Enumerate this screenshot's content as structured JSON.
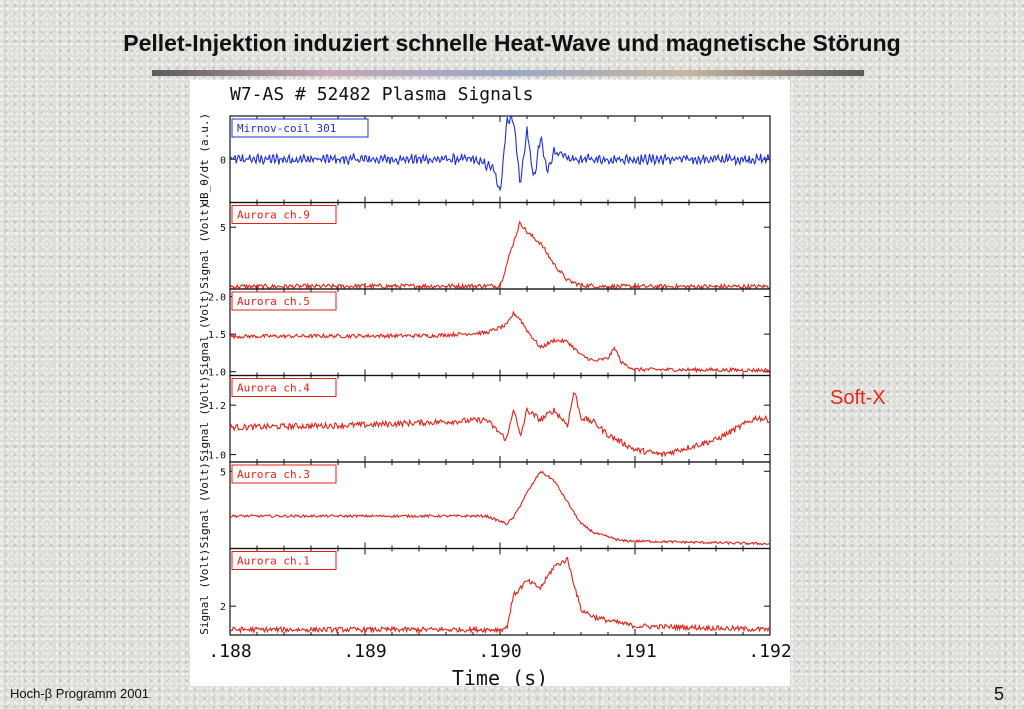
{
  "slide": {
    "title": "Pellet-Injektion induziert schnelle Heat-Wave und magnetische Störung",
    "side_label": "Soft-X",
    "footer": "Hoch-β Programm 2001",
    "page_number": "5"
  },
  "chart_data": {
    "type": "line",
    "title": "W7-AS  # 52482   Plasma Signals",
    "xlabel": "Time (s)",
    "xlim": [
      0.188,
      0.192
    ],
    "x_ticks": [
      ".188",
      ".189",
      ".190",
      ".191",
      ".192"
    ],
    "grid": false,
    "colors": {
      "mirnov": "#1f2fd6",
      "aurora": "#e2231a",
      "frame": "#111111"
    },
    "panels": [
      {
        "name": "Mirnov-coil 301",
        "ylabel": "dB_θ/dt (a.u.)",
        "color": "#1f2fd6",
        "ylim": [
          -1,
          1
        ],
        "yticks": [
          {
            "v": 0,
            "label": "0"
          }
        ],
        "x": [
          0.188,
          0.1898,
          0.18995,
          0.19,
          0.19005,
          0.1901,
          0.19015,
          0.1902,
          0.19025,
          0.1903,
          0.19035,
          0.1904,
          0.1905,
          0.192
        ],
        "values": [
          0,
          0,
          -0.2,
          -0.8,
          0.9,
          0.95,
          -0.6,
          0.7,
          -0.5,
          0.5,
          -0.3,
          0.2,
          0,
          0
        ],
        "noise": 0.07
      },
      {
        "name": "Aurora ch.9",
        "ylabel": "Signal (Volt)",
        "color": "#e2231a",
        "ylim": [
          0,
          7
        ],
        "yticks": [
          {
            "v": 5,
            "label": "5"
          }
        ],
        "x": [
          0.188,
          0.19,
          0.19005,
          0.1901,
          0.19015,
          0.1902,
          0.1903,
          0.1904,
          0.1905,
          0.1906,
          0.1908,
          0.192
        ],
        "values": [
          0.2,
          0.25,
          2.0,
          3.8,
          5.4,
          4.6,
          3.7,
          2.0,
          0.7,
          0.3,
          0.2,
          0.2
        ],
        "noise": 0.18
      },
      {
        "name": "Aurora ch.5",
        "ylabel": "Signal (Volt)",
        "color": "#e2231a",
        "ylim": [
          0.95,
          2.1
        ],
        "yticks": [
          {
            "v": 1.0,
            "label": "1.0"
          },
          {
            "v": 1.5,
            "label": "1.5"
          },
          {
            "v": 2.0,
            "label": "2.0"
          }
        ],
        "x": [
          0.188,
          0.1895,
          0.1899,
          0.19005,
          0.1901,
          0.19015,
          0.1902,
          0.1903,
          0.1904,
          0.1905,
          0.1906,
          0.1907,
          0.1908,
          0.19085,
          0.1909,
          0.191,
          0.192
        ],
        "values": [
          1.47,
          1.48,
          1.52,
          1.62,
          1.78,
          1.7,
          1.55,
          1.32,
          1.42,
          1.4,
          1.22,
          1.14,
          1.18,
          1.32,
          1.12,
          1.03,
          1.02
        ],
        "noise": 0.025
      },
      {
        "name": "Aurora ch.4",
        "ylabel": "Signal (Volt)",
        "color": "#e2231a",
        "ylim": [
          0.97,
          1.32
        ],
        "yticks": [
          {
            "v": 1.0,
            "label": "1.0"
          },
          {
            "v": 1.2,
            "label": "1.2"
          }
        ],
        "x": [
          0.188,
          0.189,
          0.1899,
          0.19005,
          0.1901,
          0.19015,
          0.1902,
          0.1903,
          0.1904,
          0.1905,
          0.19055,
          0.1906,
          0.1907,
          0.1908,
          0.191,
          0.1912,
          0.1916,
          0.1919,
          0.192
        ],
        "values": [
          1.11,
          1.12,
          1.14,
          1.06,
          1.19,
          1.07,
          1.18,
          1.14,
          1.18,
          1.12,
          1.26,
          1.15,
          1.13,
          1.08,
          1.02,
          1.0,
          1.06,
          1.15,
          1.14
        ],
        "noise": 0.012
      },
      {
        "name": "Aurora ch.3",
        "ylabel": "Signal (Volt)",
        "color": "#e2231a",
        "ylim": [
          0,
          5.6
        ],
        "yticks": [
          {
            "v": 5,
            "label": "5"
          }
        ],
        "x": [
          0.188,
          0.1899,
          0.19005,
          0.1901,
          0.1902,
          0.1903,
          0.19035,
          0.1904,
          0.1905,
          0.1906,
          0.1907,
          0.1909,
          0.192
        ],
        "values": [
          2.1,
          2.1,
          1.6,
          2.0,
          3.6,
          5.0,
          4.7,
          4.4,
          3.0,
          1.6,
          1.0,
          0.5,
          0.3
        ],
        "noise": 0.08
      },
      {
        "name": "Aurora ch.1",
        "ylabel": "Signal (Volt)",
        "color": "#e2231a",
        "ylim": [
          1.2,
          3.6
        ],
        "yticks": [
          {
            "v": 2,
            "label": "2"
          }
        ],
        "x": [
          0.188,
          0.19,
          0.19005,
          0.1901,
          0.1902,
          0.1903,
          0.1904,
          0.1905,
          0.19055,
          0.1906,
          0.1907,
          0.1908,
          0.191,
          0.192
        ],
        "values": [
          1.35,
          1.35,
          1.4,
          2.3,
          2.7,
          2.5,
          3.1,
          3.3,
          2.6,
          1.9,
          1.7,
          1.6,
          1.45,
          1.35
        ],
        "noise": 0.07
      }
    ]
  }
}
